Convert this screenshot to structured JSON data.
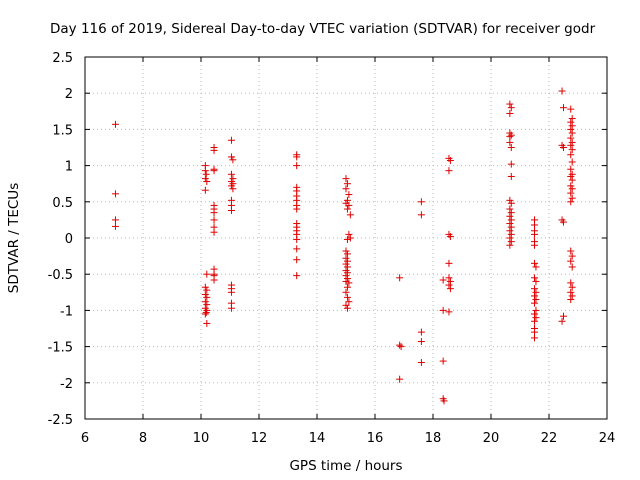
{
  "chart_data": {
    "type": "scatter",
    "title": "Day 116 of 2019, Sidereal Day-to-day VTEC variation (SDTVAR) for receiver godr",
    "xlabel": "GPS time / hours",
    "ylabel": "SDTVAR / TECUs",
    "xlim": [
      6,
      24
    ],
    "ylim": [
      -2.5,
      2.5
    ],
    "xticks": [
      "6",
      "8",
      "10",
      "12",
      "14",
      "16",
      "18",
      "20",
      "22",
      "24"
    ],
    "yticks": [
      "2.5",
      "2",
      "1.5",
      "1",
      "0.5",
      "0",
      "-0.5",
      "-1",
      "-1.5",
      "-2",
      "-2.5"
    ],
    "grid": true,
    "marker": "+",
    "color": "#e00000",
    "series": [
      {
        "name": "SDTVAR",
        "points": [
          [
            7.05,
            1.57
          ],
          [
            7.05,
            0.61
          ],
          [
            7.05,
            0.25
          ],
          [
            7.05,
            0.16
          ],
          [
            10.15,
            1.0
          ],
          [
            10.15,
            0.93
          ],
          [
            10.18,
            0.88
          ],
          [
            10.15,
            0.82
          ],
          [
            10.2,
            0.78
          ],
          [
            10.15,
            0.66
          ],
          [
            10.2,
            -0.5
          ],
          [
            10.15,
            -0.68
          ],
          [
            10.2,
            -0.72
          ],
          [
            10.15,
            -0.78
          ],
          [
            10.2,
            -0.82
          ],
          [
            10.15,
            -0.88
          ],
          [
            10.2,
            -0.92
          ],
          [
            10.15,
            -0.97
          ],
          [
            10.2,
            -1.0
          ],
          [
            10.18,
            -1.03
          ],
          [
            10.15,
            -1.05
          ],
          [
            10.2,
            -1.18
          ],
          [
            10.45,
            1.25
          ],
          [
            10.45,
            1.21
          ],
          [
            10.45,
            0.95
          ],
          [
            10.45,
            0.93
          ],
          [
            10.45,
            0.45
          ],
          [
            10.45,
            0.4
          ],
          [
            10.45,
            0.35
          ],
          [
            10.45,
            0.25
          ],
          [
            10.45,
            0.15
          ],
          [
            10.45,
            0.08
          ],
          [
            10.45,
            -0.43
          ],
          [
            10.45,
            -0.5
          ],
          [
            10.45,
            -0.52
          ],
          [
            10.45,
            -0.58
          ],
          [
            11.05,
            1.35
          ],
          [
            11.05,
            1.12
          ],
          [
            11.1,
            1.08
          ],
          [
            11.05,
            0.88
          ],
          [
            11.1,
            0.82
          ],
          [
            11.05,
            0.78
          ],
          [
            11.1,
            0.75
          ],
          [
            11.05,
            0.72
          ],
          [
            11.1,
            0.68
          ],
          [
            11.05,
            0.52
          ],
          [
            11.05,
            0.45
          ],
          [
            11.05,
            0.38
          ],
          [
            11.05,
            -0.65
          ],
          [
            11.05,
            -0.7
          ],
          [
            11.05,
            -0.75
          ],
          [
            11.05,
            -0.9
          ],
          [
            11.05,
            -0.97
          ],
          [
            13.3,
            1.15
          ],
          [
            13.3,
            1.12
          ],
          [
            13.3,
            1.0
          ],
          [
            13.3,
            0.7
          ],
          [
            13.3,
            0.65
          ],
          [
            13.3,
            0.58
          ],
          [
            13.3,
            0.52
          ],
          [
            13.3,
            0.45
          ],
          [
            13.3,
            0.4
          ],
          [
            13.3,
            0.2
          ],
          [
            13.3,
            0.15
          ],
          [
            13.3,
            0.1
          ],
          [
            13.3,
            0.05
          ],
          [
            13.3,
            -0.02
          ],
          [
            13.3,
            -0.15
          ],
          [
            13.3,
            -0.3
          ],
          [
            13.3,
            -0.52
          ],
          [
            15.0,
            0.82
          ],
          [
            15.05,
            0.75
          ],
          [
            15.0,
            0.68
          ],
          [
            15.1,
            0.6
          ],
          [
            15.05,
            0.52
          ],
          [
            15.0,
            0.48
          ],
          [
            15.1,
            0.45
          ],
          [
            15.05,
            0.4
          ],
          [
            15.15,
            0.32
          ],
          [
            15.1,
            0.05
          ],
          [
            15.15,
            0.0
          ],
          [
            15.05,
            -0.02
          ],
          [
            15.0,
            -0.18
          ],
          [
            15.05,
            -0.22
          ],
          [
            15.0,
            -0.28
          ],
          [
            15.05,
            -0.32
          ],
          [
            15.0,
            -0.36
          ],
          [
            15.05,
            -0.4
          ],
          [
            15.0,
            -0.45
          ],
          [
            15.05,
            -0.48
          ],
          [
            15.0,
            -0.52
          ],
          [
            15.05,
            -0.56
          ],
          [
            15.0,
            -0.6
          ],
          [
            15.1,
            -0.62
          ],
          [
            15.05,
            -0.68
          ],
          [
            15.0,
            -0.75
          ],
          [
            15.05,
            -0.82
          ],
          [
            15.1,
            -0.88
          ],
          [
            15.0,
            -0.93
          ],
          [
            15.05,
            -0.97
          ],
          [
            16.85,
            -0.55
          ],
          [
            16.85,
            -1.48
          ],
          [
            16.9,
            -1.5
          ],
          [
            16.85,
            -1.95
          ],
          [
            17.6,
            0.5
          ],
          [
            17.6,
            0.32
          ],
          [
            17.6,
            -1.3
          ],
          [
            17.6,
            -1.43
          ],
          [
            17.6,
            -1.72
          ],
          [
            18.35,
            -0.58
          ],
          [
            18.35,
            -1.0
          ],
          [
            18.35,
            -1.7
          ],
          [
            18.35,
            -2.22
          ],
          [
            18.38,
            -2.25
          ],
          [
            18.55,
            1.1
          ],
          [
            18.6,
            1.07
          ],
          [
            18.55,
            0.93
          ],
          [
            18.55,
            0.05
          ],
          [
            18.6,
            0.02
          ],
          [
            18.55,
            -0.35
          ],
          [
            18.55,
            -0.55
          ],
          [
            18.6,
            -0.6
          ],
          [
            18.55,
            -0.65
          ],
          [
            18.6,
            -0.7
          ],
          [
            18.55,
            -1.02
          ],
          [
            20.65,
            1.85
          ],
          [
            20.7,
            1.8
          ],
          [
            20.65,
            1.72
          ],
          [
            20.65,
            1.45
          ],
          [
            20.7,
            1.42
          ],
          [
            20.65,
            1.4
          ],
          [
            20.65,
            1.32
          ],
          [
            20.7,
            1.25
          ],
          [
            20.7,
            1.02
          ],
          [
            20.7,
            0.85
          ],
          [
            20.65,
            0.52
          ],
          [
            20.7,
            0.48
          ],
          [
            20.65,
            0.4
          ],
          [
            20.7,
            0.35
          ],
          [
            20.65,
            0.3
          ],
          [
            20.7,
            0.25
          ],
          [
            20.65,
            0.2
          ],
          [
            20.7,
            0.15
          ],
          [
            20.65,
            0.1
          ],
          [
            20.7,
            0.05
          ],
          [
            20.65,
            0.0
          ],
          [
            20.7,
            -0.05
          ],
          [
            20.65,
            -0.1
          ],
          [
            21.5,
            0.25
          ],
          [
            21.5,
            0.18
          ],
          [
            21.5,
            0.1
          ],
          [
            21.5,
            0.05
          ],
          [
            21.5,
            -0.05
          ],
          [
            21.5,
            -0.1
          ],
          [
            21.5,
            -0.35
          ],
          [
            21.55,
            -0.4
          ],
          [
            21.5,
            -0.55
          ],
          [
            21.55,
            -0.6
          ],
          [
            21.5,
            -0.7
          ],
          [
            21.55,
            -0.75
          ],
          [
            21.5,
            -0.8
          ],
          [
            21.55,
            -0.85
          ],
          [
            21.5,
            -0.9
          ],
          [
            21.55,
            -1.0
          ],
          [
            21.5,
            -1.05
          ],
          [
            21.55,
            -1.1
          ],
          [
            21.5,
            -1.15
          ],
          [
            21.5,
            -1.25
          ],
          [
            21.5,
            -1.3
          ],
          [
            21.5,
            -1.38
          ],
          [
            22.45,
            2.03
          ],
          [
            22.5,
            1.8
          ],
          [
            22.45,
            1.28
          ],
          [
            22.5,
            1.25
          ],
          [
            22.45,
            0.25
          ],
          [
            22.5,
            0.22
          ],
          [
            22.5,
            -1.08
          ],
          [
            22.45,
            -1.15
          ],
          [
            22.75,
            1.78
          ],
          [
            22.8,
            1.65
          ],
          [
            22.75,
            1.6
          ],
          [
            22.8,
            1.55
          ],
          [
            22.75,
            1.5
          ],
          [
            22.8,
            1.45
          ],
          [
            22.75,
            1.38
          ],
          [
            22.8,
            1.32
          ],
          [
            22.75,
            1.28
          ],
          [
            22.8,
            1.22
          ],
          [
            22.75,
            1.15
          ],
          [
            22.8,
            1.05
          ],
          [
            22.75,
            0.95
          ],
          [
            22.8,
            0.88
          ],
          [
            22.75,
            0.85
          ],
          [
            22.8,
            0.8
          ],
          [
            22.75,
            0.72
          ],
          [
            22.8,
            0.68
          ],
          [
            22.75,
            0.62
          ],
          [
            22.8,
            0.55
          ],
          [
            22.75,
            0.5
          ],
          [
            22.75,
            -0.18
          ],
          [
            22.8,
            -0.25
          ],
          [
            22.75,
            -0.32
          ],
          [
            22.8,
            -0.4
          ],
          [
            22.75,
            -0.62
          ],
          [
            22.8,
            -0.68
          ],
          [
            22.75,
            -0.75
          ],
          [
            22.8,
            -0.8
          ],
          [
            22.75,
            -0.85
          ]
        ]
      }
    ]
  }
}
